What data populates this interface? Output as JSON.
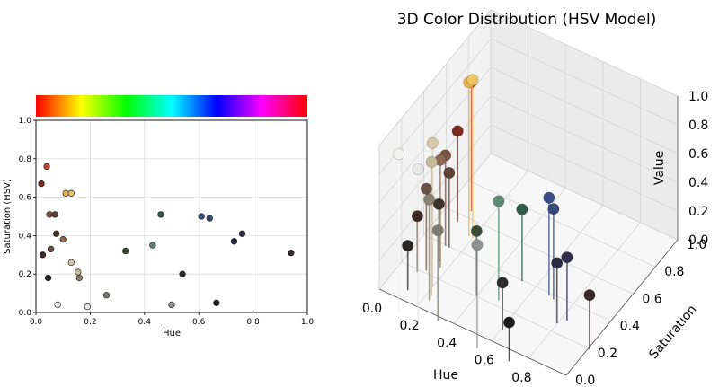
{
  "chart_data": [
    {
      "type": "scatter",
      "title": "",
      "xlabel": "Hue",
      "ylabel": "Saturation (HSV)",
      "xlim": [
        0,
        1
      ],
      "ylim": [
        0,
        1
      ],
      "xticks": [
        "0.0",
        "0.2",
        "0.4",
        "0.6",
        "0.8",
        "1.0"
      ],
      "yticks": [
        "0.0",
        "0.2",
        "0.4",
        "0.6",
        "0.8",
        "1.0"
      ],
      "grid": true,
      "colorbar": "hue spectrum",
      "points": [
        {
          "h": 0.02,
          "s": 0.67,
          "color": "#7a2a20"
        },
        {
          "h": 0.025,
          "s": 0.3,
          "color": "#3d2a25"
        },
        {
          "h": 0.04,
          "s": 0.76,
          "color": "#c0492e"
        },
        {
          "h": 0.045,
          "s": 0.18,
          "color": "#2a2624"
        },
        {
          "h": 0.05,
          "s": 0.51,
          "color": "#7a5040"
        },
        {
          "h": 0.055,
          "s": 0.33,
          "color": "#6b5246"
        },
        {
          "h": 0.07,
          "s": 0.51,
          "color": "#5e4235"
        },
        {
          "h": 0.075,
          "s": 0.41,
          "color": "#3f3228"
        },
        {
          "h": 0.08,
          "s": 0.04,
          "color": "#f2f2f0"
        },
        {
          "h": 0.1,
          "s": 0.38,
          "color": "#8c6a52"
        },
        {
          "h": 0.11,
          "s": 0.62,
          "color": "#e8b450"
        },
        {
          "h": 0.13,
          "s": 0.62,
          "color": "#f0c460"
        },
        {
          "h": 0.13,
          "s": 0.26,
          "color": "#d8c8a8"
        },
        {
          "h": 0.155,
          "s": 0.21,
          "color": "#c8bc98"
        },
        {
          "h": 0.16,
          "s": 0.18,
          "color": "#8a8270"
        },
        {
          "h": 0.19,
          "s": 0.03,
          "color": "#e8e8e6"
        },
        {
          "h": 0.26,
          "s": 0.09,
          "color": "#7a7a72"
        },
        {
          "h": 0.33,
          "s": 0.32,
          "color": "#3e4a38"
        },
        {
          "h": 0.43,
          "s": 0.35,
          "color": "#5e8a74"
        },
        {
          "h": 0.46,
          "s": 0.51,
          "color": "#2e5a48"
        },
        {
          "h": 0.5,
          "s": 0.04,
          "color": "#909292"
        },
        {
          "h": 0.54,
          "s": 0.2,
          "color": "#2c2e2e"
        },
        {
          "h": 0.61,
          "s": 0.5,
          "color": "#3a4c88"
        },
        {
          "h": 0.64,
          "s": 0.49,
          "color": "#364a7a"
        },
        {
          "h": 0.665,
          "s": 0.05,
          "color": "#1e1e1e"
        },
        {
          "h": 0.73,
          "s": 0.37,
          "color": "#2a2a44"
        },
        {
          "h": 0.76,
          "s": 0.41,
          "color": "#2e2c4a"
        },
        {
          "h": 0.94,
          "s": 0.31,
          "color": "#3a2828"
        }
      ]
    },
    {
      "type": "scatter3d",
      "title": "3D Color Distribution (HSV Model)",
      "xlabel": "Hue",
      "ylabel": "Saturation",
      "zlabel": "Value",
      "xlim": [
        0,
        1
      ],
      "ylim": [
        0,
        1
      ],
      "zlim": [
        0,
        1
      ],
      "xticks": [
        "0.0",
        "0.2",
        "0.4",
        "0.6",
        "0.8",
        "1.0"
      ],
      "yticks": [
        "0.0",
        "0.2",
        "0.4",
        "0.6",
        "0.8",
        "1.0"
      ],
      "zticks": [
        "0.0",
        "0.2",
        "0.4",
        "0.6",
        "0.8",
        "1.0"
      ],
      "grid": true,
      "points": [
        {
          "h": 0.13,
          "s": 0.62,
          "v": 0.95,
          "color": "#f0c460"
        },
        {
          "h": 0.11,
          "s": 0.62,
          "v": 0.92,
          "color": "#e8b450"
        },
        {
          "h": 0.04,
          "s": 0.76,
          "v": 0.75,
          "color": "#c0492e"
        },
        {
          "h": 0.13,
          "s": 0.26,
          "v": 0.85,
          "color": "#d8c8a8"
        },
        {
          "h": 0.1,
          "s": 0.38,
          "v": 0.6,
          "color": "#8c6a52"
        },
        {
          "h": 0.08,
          "s": 0.04,
          "v": 0.95,
          "color": "#f2f2f0"
        },
        {
          "h": 0.155,
          "s": 0.21,
          "v": 0.78,
          "color": "#c8bc98"
        },
        {
          "h": 0.05,
          "s": 0.51,
          "v": 0.48,
          "color": "#7a5040"
        },
        {
          "h": 0.16,
          "s": 0.18,
          "v": 0.55,
          "color": "#8a8270"
        },
        {
          "h": 0.055,
          "s": 0.33,
          "v": 0.42,
          "color": "#6b5246"
        },
        {
          "h": 0.07,
          "s": 0.51,
          "v": 0.37,
          "color": "#5e4235"
        },
        {
          "h": 0.19,
          "s": 0.03,
          "v": 0.92,
          "color": "#e8e8e6"
        },
        {
          "h": 0.02,
          "s": 0.67,
          "v": 0.48,
          "color": "#7a2a20"
        },
        {
          "h": 0.025,
          "s": 0.3,
          "v": 0.24,
          "color": "#3d2a25"
        },
        {
          "h": 0.075,
          "s": 0.41,
          "v": 0.25,
          "color": "#3f3228"
        },
        {
          "h": 0.26,
          "s": 0.09,
          "v": 0.48,
          "color": "#7a7a72"
        },
        {
          "h": 0.33,
          "s": 0.32,
          "v": 0.3,
          "color": "#3e4a38"
        },
        {
          "h": 0.43,
          "s": 0.35,
          "v": 0.54,
          "color": "#5e8a74"
        },
        {
          "h": 0.46,
          "s": 0.51,
          "v": 0.35,
          "color": "#2e5a48"
        },
        {
          "h": 0.61,
          "s": 0.5,
          "v": 0.53,
          "color": "#3a4c88"
        },
        {
          "h": 0.64,
          "s": 0.49,
          "v": 0.48,
          "color": "#364a7a"
        },
        {
          "h": 0.73,
          "s": 0.37,
          "v": 0.27,
          "color": "#2a2a44"
        },
        {
          "h": 0.76,
          "s": 0.41,
          "v": 0.29,
          "color": "#2e2c4a"
        },
        {
          "h": 0.94,
          "s": 0.31,
          "v": 0.23,
          "color": "#3a2828"
        },
        {
          "h": 0.54,
          "s": 0.2,
          "v": 0.18,
          "color": "#2c2e2e"
        },
        {
          "h": 0.665,
          "s": 0.05,
          "v": 0.12,
          "color": "#1e1e1e"
        },
        {
          "h": 0.5,
          "s": 0.04,
          "v": 0.57,
          "color": "#909292"
        },
        {
          "h": 0.045,
          "s": 0.18,
          "v": 0.16,
          "color": "#2a2624"
        }
      ]
    }
  ]
}
